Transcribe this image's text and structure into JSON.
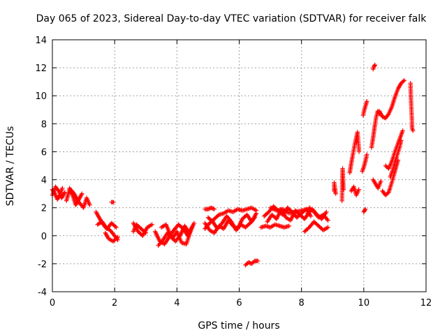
{
  "chart_data": {
    "type": "scatter",
    "title": "Day 065 of 2023, Sidereal Day-to-day VTEC variation (SDTVAR) for receiver falk",
    "xlabel": "GPS time / hours",
    "ylabel": "SDTVAR / TECUs",
    "xlim": [
      0,
      12
    ],
    "ylim": [
      -4,
      14
    ],
    "xticks": [
      0,
      2,
      4,
      6,
      8,
      10,
      12
    ],
    "yticks": [
      -4,
      -2,
      0,
      2,
      4,
      6,
      8,
      10,
      12,
      14
    ],
    "grid": true,
    "marker": "plus",
    "color": "#ff0000",
    "segments": [
      {
        "x": [
          0.0,
          0.08,
          0.16,
          0.24,
          0.32
        ],
        "y": [
          3.3,
          3.0,
          2.6,
          2.9,
          3.4
        ]
      },
      {
        "x": [
          0.0,
          0.1,
          0.2,
          0.3,
          0.4
        ],
        "y": [
          2.9,
          3.5,
          3.2,
          2.7,
          3.1
        ]
      },
      {
        "x": [
          0.45,
          0.55,
          0.65,
          0.75,
          0.85,
          0.95
        ],
        "y": [
          2.5,
          3.3,
          2.9,
          2.2,
          2.6,
          3.0
        ]
      },
      {
        "x": [
          0.55,
          0.7,
          0.85,
          1.0,
          1.1,
          1.2
        ],
        "y": [
          3.4,
          3.0,
          2.4,
          2.0,
          2.7,
          2.2
        ]
      },
      {
        "x": [
          1.4,
          1.55,
          1.7,
          1.85,
          2.0,
          2.1
        ],
        "y": [
          1.7,
          1.1,
          0.6,
          0.4,
          0.0,
          -0.3
        ]
      },
      {
        "x": [
          1.45,
          1.6,
          1.75,
          1.9,
          2.05
        ],
        "y": [
          0.8,
          1.0,
          0.5,
          0.9,
          0.6
        ]
      },
      {
        "x": [
          1.7,
          1.8,
          1.95,
          2.1
        ],
        "y": [
          0.2,
          -0.2,
          -0.4,
          -0.1
        ]
      },
      {
        "x": [
          1.9,
          1.96
        ],
        "y": [
          2.4,
          2.4
        ]
      },
      {
        "x": [
          2.6,
          2.75,
          2.9,
          3.05,
          3.2
        ],
        "y": [
          0.9,
          0.3,
          0.0,
          0.6,
          0.8
        ]
      },
      {
        "x": [
          2.6,
          2.7,
          2.85,
          3.0
        ],
        "y": [
          0.3,
          0.8,
          0.5,
          0.2
        ]
      },
      {
        "x": [
          3.3,
          3.45,
          3.6,
          3.75,
          3.9,
          4.05,
          4.2,
          4.35,
          4.5
        ],
        "y": [
          0.3,
          -0.4,
          -0.6,
          -0.1,
          0.4,
          0.8,
          0.5,
          0.0,
          0.7
        ]
      },
      {
        "x": [
          3.4,
          3.55,
          3.7,
          3.85,
          4.0,
          4.15,
          4.3,
          4.45,
          4.55
        ],
        "y": [
          -0.7,
          -0.3,
          0.2,
          -0.2,
          0.3,
          -0.5,
          -0.6,
          0.4,
          0.9
        ]
      },
      {
        "x": [
          3.5,
          3.65,
          3.8,
          3.95,
          4.1,
          4.25,
          4.4
        ],
        "y": [
          0.6,
          0.8,
          0.0,
          -0.4,
          0.0,
          0.7,
          0.2
        ]
      },
      {
        "x": [
          4.9,
          5.0,
          5.1,
          5.2
        ],
        "y": [
          1.9,
          1.9,
          2.0,
          1.9
        ]
      },
      {
        "x": [
          4.9,
          5.05,
          5.2,
          5.35,
          5.5,
          5.65,
          5.8,
          5.95,
          6.1,
          6.25,
          6.4,
          6.55
        ],
        "y": [
          0.5,
          0.9,
          1.2,
          1.5,
          1.6,
          1.8,
          1.7,
          1.9,
          1.8,
          1.9,
          2.0,
          1.8
        ]
      },
      {
        "x": [
          4.9,
          5.05,
          5.2,
          5.35,
          5.5,
          5.65,
          5.8,
          5.95,
          6.1,
          6.25,
          6.4,
          6.55
        ],
        "y": [
          0.9,
          0.4,
          0.2,
          0.7,
          0.5,
          1.1,
          0.7,
          0.5,
          1.2,
          1.5,
          1.0,
          1.6
        ]
      },
      {
        "x": [
          5.0,
          5.15,
          5.3,
          5.45,
          5.6,
          5.75,
          5.9,
          6.05,
          6.2,
          6.35,
          6.5
        ],
        "y": [
          1.3,
          1.0,
          0.5,
          0.9,
          1.4,
          1.0,
          0.4,
          0.8,
          0.6,
          0.9,
          1.3
        ]
      },
      {
        "x": [
          6.2,
          6.3,
          6.4,
          6.5,
          6.6
        ],
        "y": [
          -2.1,
          -1.9,
          -2.0,
          -1.8,
          -1.8
        ]
      },
      {
        "x": [
          6.7,
          6.85,
          7.0,
          7.15,
          7.3,
          7.45,
          7.6
        ],
        "y": [
          0.6,
          0.7,
          0.6,
          0.8,
          0.7,
          0.6,
          0.7
        ]
      },
      {
        "x": [
          6.8,
          6.95,
          7.1,
          7.25,
          7.4,
          7.55,
          7.7,
          7.85,
          8.0,
          8.15,
          8.3
        ],
        "y": [
          1.4,
          1.7,
          2.1,
          1.8,
          1.5,
          2.0,
          1.7,
          1.3,
          1.6,
          1.9,
          1.4
        ]
      },
      {
        "x": [
          6.9,
          7.05,
          7.2,
          7.35,
          7.5,
          7.65,
          7.8,
          7.95,
          8.1,
          8.25
        ],
        "y": [
          1.0,
          1.5,
          1.2,
          1.9,
          1.3,
          1.1,
          1.8,
          1.5,
          1.2,
          1.7
        ]
      },
      {
        "x": [
          7.0,
          7.2,
          7.4,
          7.6,
          7.8,
          8.0,
          8.2
        ],
        "y": [
          2.0,
          1.8,
          1.9,
          1.6,
          1.7,
          1.8,
          1.9
        ]
      },
      {
        "x": [
          8.1,
          8.25,
          8.4,
          8.55,
          8.7,
          8.85
        ],
        "y": [
          0.3,
          0.6,
          1.0,
          0.7,
          0.4,
          0.6
        ]
      },
      {
        "x": [
          8.2,
          8.35,
          8.5,
          8.65,
          8.8
        ],
        "y": [
          1.6,
          1.9,
          1.5,
          1.2,
          1.7
        ]
      },
      {
        "x": [
          8.25,
          8.4,
          8.55,
          8.7,
          8.85
        ],
        "y": [
          2.0,
          1.7,
          1.3,
          1.5,
          1.1
        ]
      },
      {
        "x": [
          9.05,
          9.05,
          9.05,
          9.1
        ],
        "y": [
          3.2,
          3.5,
          3.8,
          3.0
        ]
      },
      {
        "x": [
          9.3,
          9.32,
          9.35
        ],
        "y": [
          2.5,
          4.8,
          3.3
        ]
      },
      {
        "x": [
          9.55,
          9.6,
          9.65,
          9.7,
          9.75,
          9.8,
          9.85
        ],
        "y": [
          4.5,
          5.2,
          5.8,
          6.4,
          6.9,
          7.4,
          6.0
        ]
      },
      {
        "x": [
          9.6,
          9.68,
          9.76,
          9.84
        ],
        "y": [
          3.2,
          3.5,
          2.9,
          3.3
        ]
      },
      {
        "x": [
          9.95,
          10.0,
          10.05,
          10.1
        ],
        "y": [
          4.6,
          4.9,
          5.3,
          5.8
        ]
      },
      {
        "x": [
          9.98,
          10.02,
          10.06,
          10.1
        ],
        "y": [
          8.6,
          9.0,
          9.3,
          9.6
        ]
      },
      {
        "x": [
          10.0,
          10.05
        ],
        "y": [
          1.7,
          1.9
        ]
      },
      {
        "x": [
          10.3,
          10.33,
          10.36
        ],
        "y": [
          11.9,
          12.1,
          12.2
        ]
      },
      {
        "x": [
          10.25,
          10.3,
          10.35,
          10.4,
          10.45,
          10.5
        ],
        "y": [
          6.3,
          7.0,
          7.8,
          8.5,
          8.9,
          8.7
        ]
      },
      {
        "x": [
          10.3,
          10.38,
          10.46,
          10.55
        ],
        "y": [
          4.0,
          3.7,
          3.4,
          3.9
        ]
      },
      {
        "x": [
          10.5,
          10.6,
          10.7,
          10.8,
          10.9,
          11.0,
          11.1,
          11.2,
          11.3
        ],
        "y": [
          8.9,
          8.5,
          8.4,
          8.7,
          9.2,
          9.9,
          10.5,
          10.9,
          11.1
        ]
      },
      {
        "x": [
          10.6,
          10.7,
          10.8,
          10.9,
          11.0,
          11.1
        ],
        "y": [
          3.2,
          2.9,
          3.1,
          3.8,
          4.6,
          5.4
        ]
      },
      {
        "x": [
          10.7,
          10.8,
          10.9,
          11.0,
          11.1,
          11.2,
          11.25
        ],
        "y": [
          5.0,
          4.8,
          5.3,
          6.0,
          6.6,
          7.2,
          7.5
        ]
      },
      {
        "x": [
          10.85,
          10.95,
          11.05,
          11.15,
          11.2
        ],
        "y": [
          4.2,
          4.8,
          5.6,
          6.3,
          6.8
        ]
      },
      {
        "x": [
          11.5,
          11.52,
          11.55,
          11.55,
          11.58
        ],
        "y": [
          10.9,
          9.5,
          8.1,
          7.7,
          7.5
        ]
      }
    ]
  }
}
